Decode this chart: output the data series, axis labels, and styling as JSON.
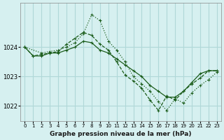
{
  "title": "Graphe pression niveau de la mer (hPa)",
  "bg_color": "#d6f0f0",
  "grid_color": "#b0d8d8",
  "line_color": "#1a5c1a",
  "x_ticks": [
    0,
    1,
    2,
    3,
    4,
    5,
    6,
    7,
    8,
    9,
    10,
    11,
    12,
    13,
    14,
    15,
    16,
    17,
    18,
    19,
    20,
    21,
    22,
    23
  ],
  "ylim": [
    1021.5,
    1025.5
  ],
  "yticks": [
    1022,
    1023,
    1024
  ],
  "series": [
    {
      "x": [
        0,
        1,
        2,
        3,
        4,
        5,
        6,
        7,
        8,
        9,
        10,
        11,
        12,
        13,
        14,
        15,
        16,
        17,
        18,
        19,
        20,
        21,
        22,
        23
      ],
      "y": [
        1024.0,
        1023.7,
        1023.7,
        1023.8,
        1023.8,
        1023.9,
        1024.0,
        1024.2,
        1024.15,
        1023.9,
        1023.8,
        1023.6,
        1023.4,
        1023.2,
        1023.0,
        1022.7,
        1022.5,
        1022.3,
        1022.3,
        1022.5,
        1022.8,
        1023.1,
        1023.2,
        1023.2
      ],
      "linestyle": "-"
    },
    {
      "x": [
        0,
        1,
        2,
        3,
        4,
        5,
        6,
        7,
        8,
        9,
        10,
        11,
        12,
        13,
        14,
        15,
        16,
        17,
        18,
        19,
        20,
        21,
        22,
        23
      ],
      "y": [
        1024.0,
        1023.7,
        1023.75,
        1023.8,
        1023.85,
        1024.1,
        1024.3,
        1024.5,
        1024.4,
        1024.1,
        1023.9,
        1023.5,
        1023.05,
        1022.85,
        1022.6,
        1022.2,
        1021.85,
        1022.35,
        1022.2,
        1022.5,
        1022.75,
        1022.95,
        1023.2,
        1023.2
      ],
      "linestyle": "--"
    },
    {
      "x": [
        0,
        2,
        3,
        4,
        5,
        6,
        7,
        8,
        9,
        10,
        11,
        12,
        13,
        14,
        15,
        16,
        17,
        18,
        19,
        20,
        21,
        22,
        23
      ],
      "y": [
        1024.0,
        1023.8,
        1023.85,
        1023.9,
        1024.0,
        1024.15,
        1024.45,
        1025.1,
        1024.9,
        1024.2,
        1023.9,
        1023.5,
        1023.0,
        1022.75,
        1022.5,
        1022.15,
        1021.85,
        1022.25,
        1022.1,
        1022.45,
        1022.7,
        1022.9,
        1023.15
      ],
      "linestyle": ":"
    }
  ]
}
